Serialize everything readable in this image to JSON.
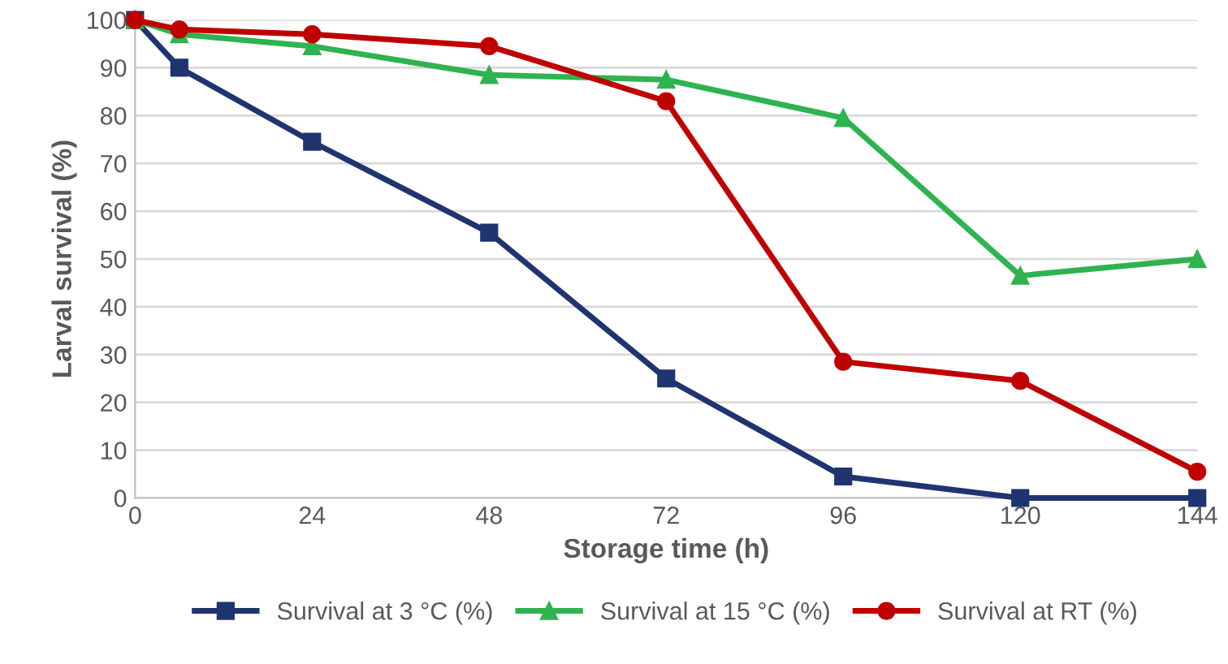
{
  "chart_data": {
    "type": "line",
    "xlabel": "Storage time (h)",
    "ylabel": "Larval survival (%)",
    "xlim": [
      0,
      144
    ],
    "xticks": [
      0,
      24,
      48,
      72,
      96,
      120,
      144
    ],
    "ylim": [
      0,
      100
    ],
    "yticks": [
      0,
      10,
      20,
      30,
      40,
      50,
      60,
      70,
      80,
      90,
      100
    ],
    "grid": "y",
    "legend": "bottom",
    "line_style": "solid",
    "series": [
      {
        "name": "Survival at 3 °C (%)",
        "color": "#1f3470",
        "marker": "square",
        "x": [
          0,
          6,
          24,
          48,
          72,
          96,
          120,
          144
        ],
        "values": [
          100,
          90,
          74.5,
          55.5,
          25,
          4.5,
          0,
          0
        ]
      },
      {
        "name": "Survival at 15 °C (%)",
        "color": "#2eb350",
        "marker": "triangle",
        "x": [
          0,
          6,
          24,
          48,
          72,
          96,
          120,
          144
        ],
        "values": [
          100,
          97,
          94.5,
          88.5,
          87.5,
          79.5,
          46.5,
          50
        ]
      },
      {
        "name": "Survival at RT (%)",
        "color": "#c00000",
        "marker": "circle",
        "x": [
          0,
          6,
          24,
          48,
          72,
          96,
          120,
          144
        ],
        "values": [
          100,
          98,
          97,
          94.5,
          83,
          28.5,
          24.5,
          5.5
        ]
      }
    ]
  }
}
